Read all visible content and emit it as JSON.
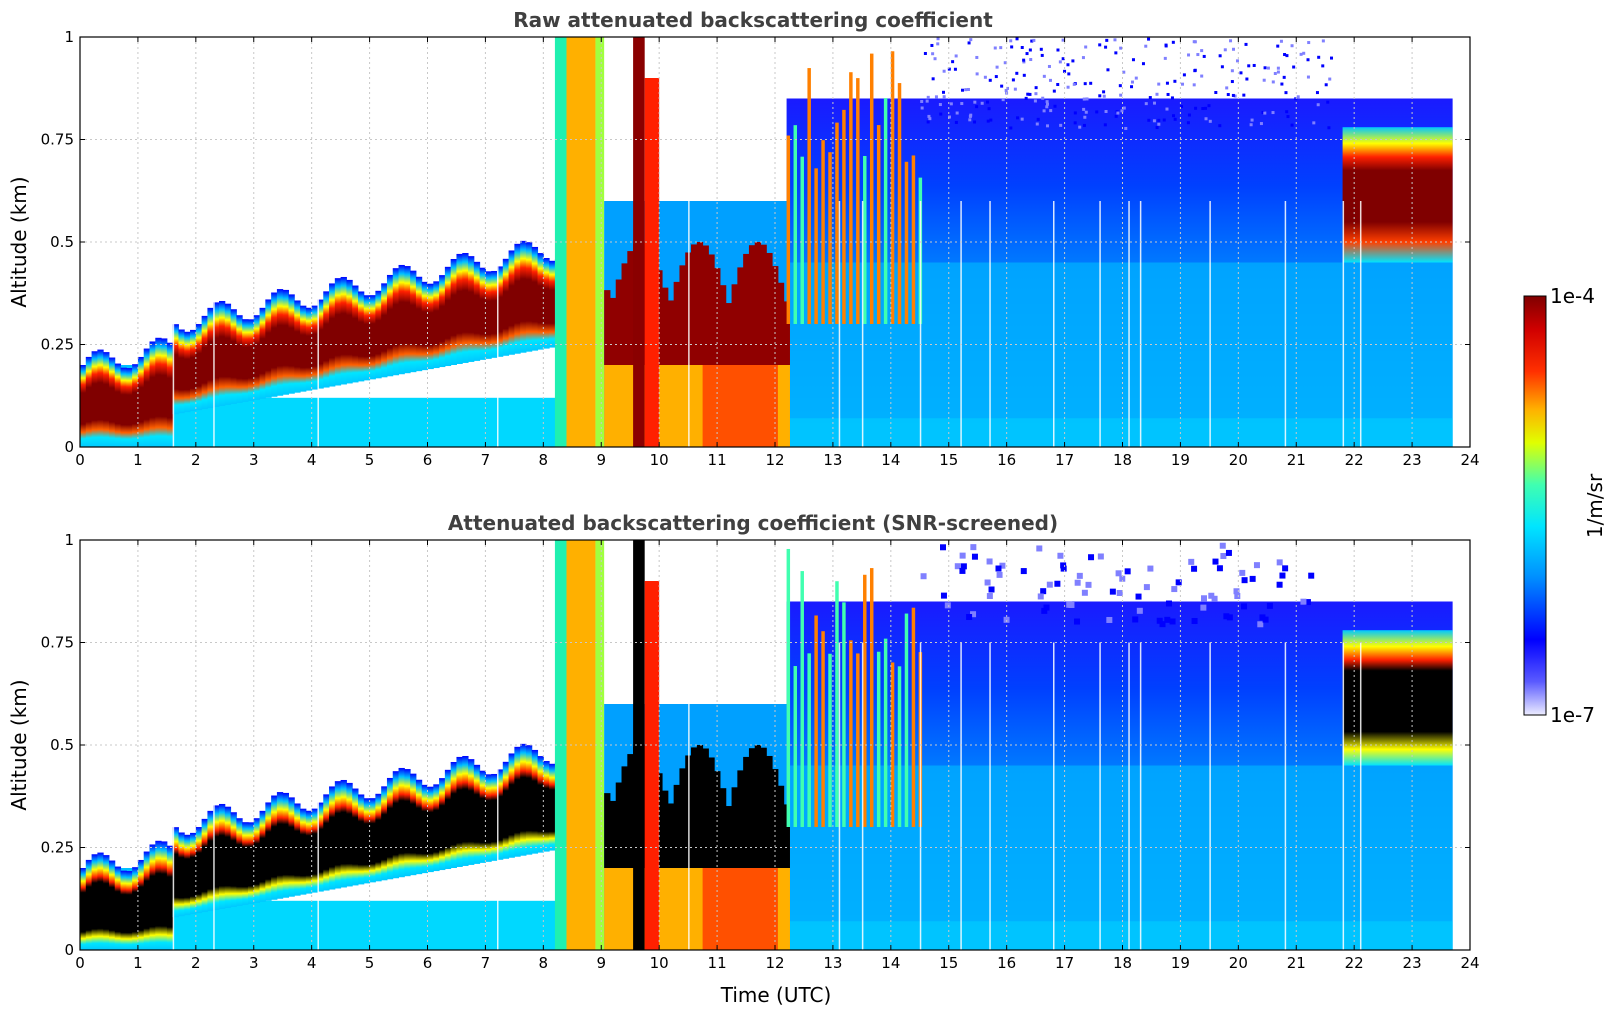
{
  "chart_data": [
    {
      "type": "heatmap",
      "title": "Raw attenuated backscattering coefficient",
      "xlabel": "",
      "ylabel": "Altitude (km)",
      "xlim": [
        0,
        24
      ],
      "ylim": [
        0,
        1
      ],
      "xticks": [
        "0",
        "1",
        "2",
        "3",
        "4",
        "5",
        "6",
        "7",
        "8",
        "9",
        "10",
        "11",
        "12",
        "13",
        "14",
        "15",
        "16",
        "17",
        "18",
        "19",
        "20",
        "21",
        "22",
        "23",
        "24"
      ],
      "yticks": [
        "0",
        "0.25",
        "0.5",
        "0.75",
        "1"
      ],
      "grid": true,
      "features": [
        {
          "name": "boundary layer aerosol",
          "start": 0,
          "end": 8.2,
          "base_km": [
            0.0,
            0.1,
            0.2
          ],
          "top_km": [
            0.18,
            0.3,
            0.42
          ],
          "level": "high"
        },
        {
          "name": "fog / low cloud",
          "start": 9.5,
          "end": 12.2,
          "top_km": 0.5,
          "level": "high"
        },
        {
          "name": "elevated cloud layer",
          "start": 21.8,
          "end": 23.7,
          "base_km": 0.5,
          "top_km": 0.78,
          "level": "high"
        }
      ]
    },
    {
      "type": "heatmap",
      "title": "Attenuated backscattering coefficient (SNR-screened)",
      "xlabel": "Time (UTC)",
      "ylabel": "Altitude (km)",
      "xlim": [
        0,
        24
      ],
      "ylim": [
        0,
        1
      ],
      "xticks": [
        "0",
        "1",
        "2",
        "3",
        "4",
        "5",
        "6",
        "7",
        "8",
        "9",
        "10",
        "11",
        "12",
        "13",
        "14",
        "15",
        "16",
        "17",
        "18",
        "19",
        "20",
        "21",
        "22",
        "23",
        "24"
      ],
      "yticks": [
        "0",
        "0.25",
        "0.5",
        "0.75",
        "1"
      ],
      "grid": true
    }
  ],
  "colorbar": {
    "label": "1/m/sr",
    "max_label": "1e-4",
    "min_label": "1e-7",
    "colors": [
      "#e8e8ff",
      "#0000ff",
      "#0080ff",
      "#00ffff",
      "#ffff00",
      "#ff8000",
      "#ff0000",
      "#800000"
    ]
  }
}
